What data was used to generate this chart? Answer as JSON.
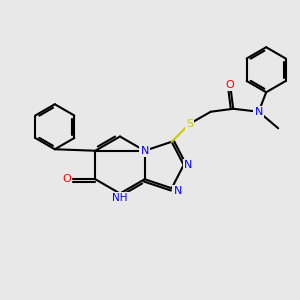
{
  "bg_color": "#e8e8e8",
  "bond_color": "#000000",
  "n_color": "#0000ff",
  "o_color": "#ff0000",
  "s_color": "#cccc00",
  "lw": 1.5,
  "xlim": [
    0,
    10
  ],
  "ylim": [
    0,
    10
  ]
}
